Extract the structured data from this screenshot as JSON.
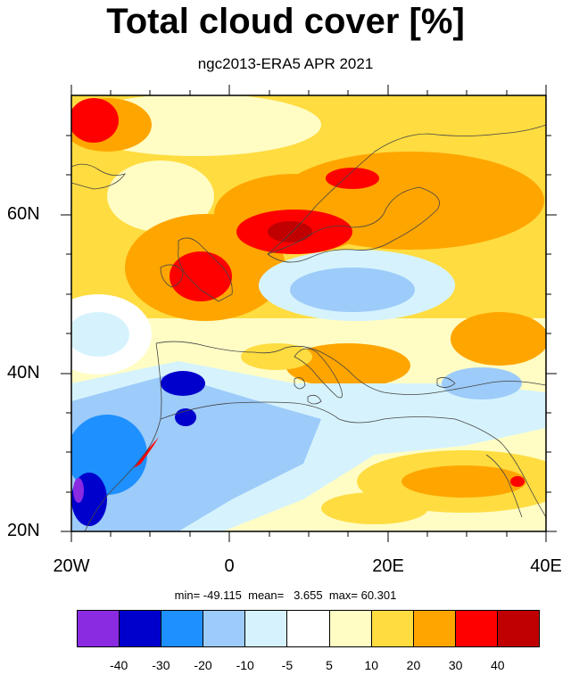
{
  "title": "Total cloud cover [%]",
  "subtitle": "ngc2013-ERA5 APR 2021",
  "lat_labels": [
    "60N",
    "40N",
    "20N"
  ],
  "lon_labels": [
    "20W",
    "0",
    "20E",
    "40E"
  ],
  "stats": {
    "text": "min= -49.115  mean=   3.655  max= 60.301",
    "min": -49.115,
    "mean": 3.655,
    "max": 60.301
  },
  "colorbar": {
    "colors": [
      "#8a2be2",
      "#0000cd",
      "#1e90ff",
      "#9dcbfa",
      "#d6f3fd",
      "#ffffff",
      "#fffdc4",
      "#ffdc40",
      "#ffa500",
      "#ff0000",
      "#c00000"
    ],
    "labels": [
      "-40",
      "-30",
      "-20",
      "-10",
      "-5",
      "5",
      "10",
      "20",
      "30",
      "40"
    ]
  },
  "map": {
    "lon_range": [
      -20,
      40
    ],
    "lat_range": [
      20,
      75
    ],
    "projection": "cylindrical-equidistant"
  }
}
